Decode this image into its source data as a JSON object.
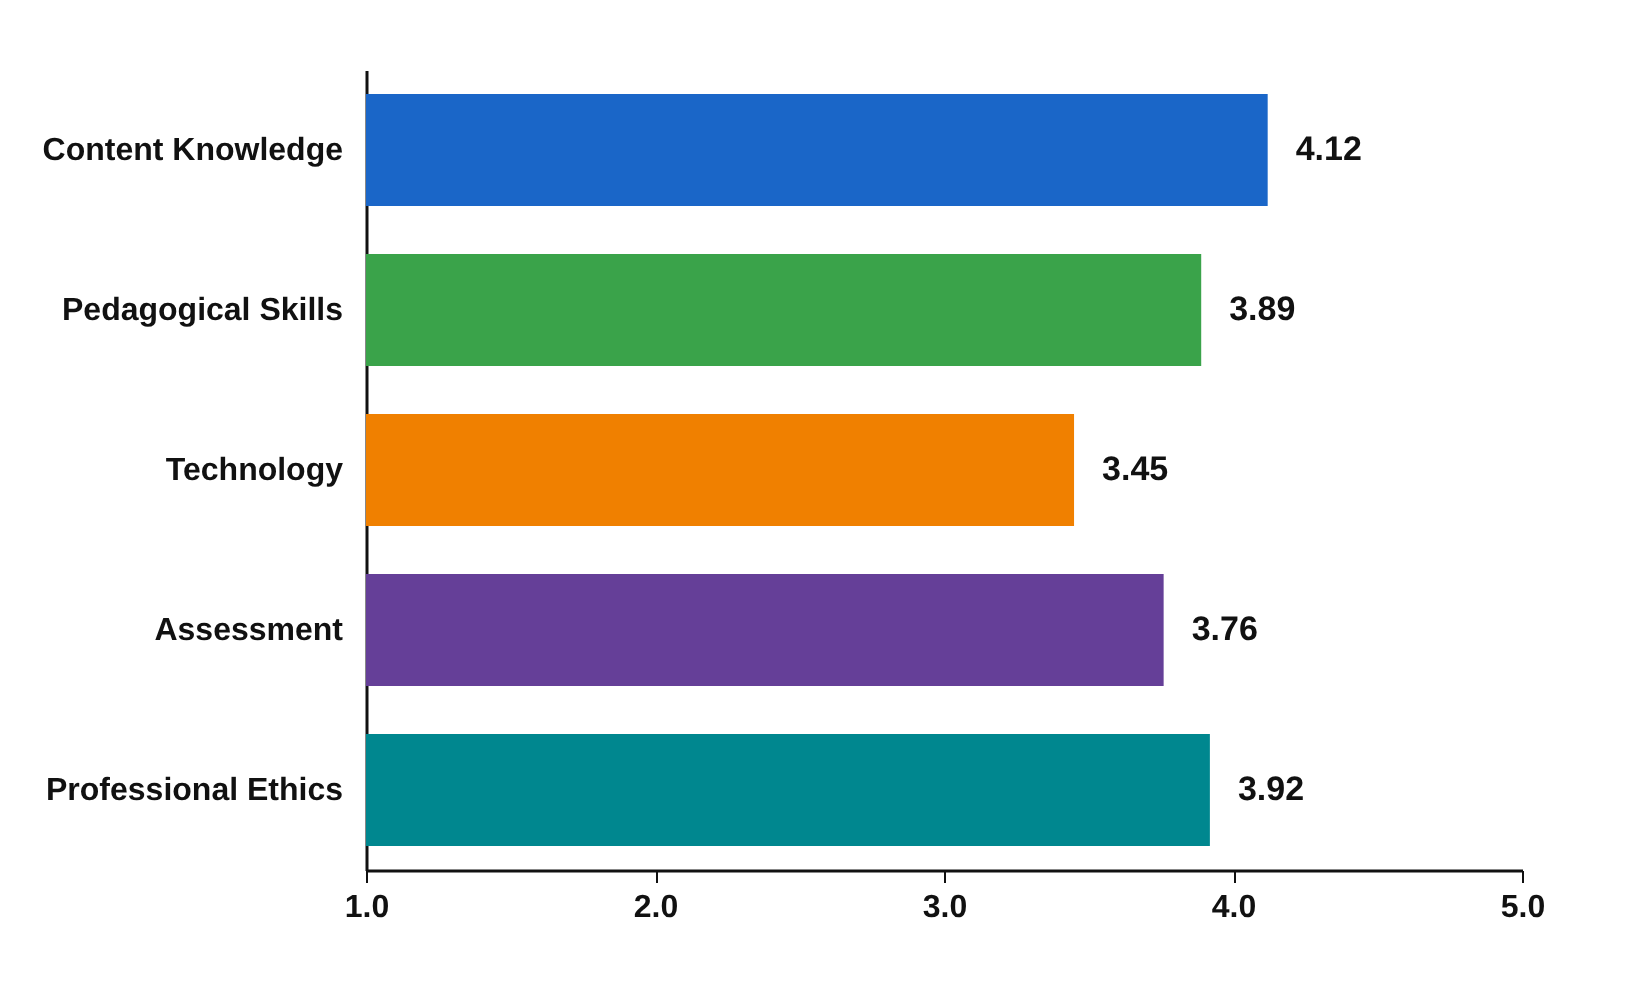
{
  "chart_data": {
    "type": "bar",
    "orientation": "horizontal",
    "categories": [
      "Content Knowledge",
      "Pedagogical Skills",
      "Technology",
      "Assessment",
      "Professional Ethics"
    ],
    "values": [
      4.12,
      3.89,
      3.45,
      3.76,
      3.92
    ],
    "colors": [
      "#1a66c8",
      "#3aa34a",
      "#f08000",
      "#653f98",
      "#00878f"
    ],
    "xlim": [
      1,
      5
    ],
    "xticks": [
      {
        "value": 1,
        "label": "1.0"
      },
      {
        "value": 2,
        "label": "2.0"
      },
      {
        "value": 3,
        "label": "3.0"
      },
      {
        "value": 4,
        "label": "4.0"
      },
      {
        "value": 5,
        "label": "5.0"
      }
    ],
    "data_labels": true,
    "grid": false
  }
}
